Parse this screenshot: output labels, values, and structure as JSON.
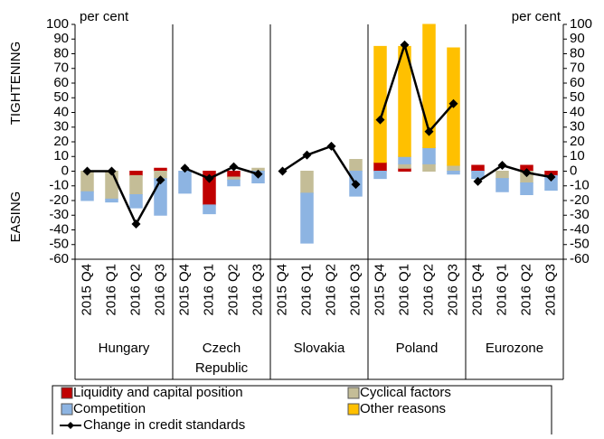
{
  "chart_data": {
    "type": "bar",
    "left_unit": "per cent",
    "right_unit": "per cent",
    "upper_label": "TIGHTENING",
    "lower_label": "EASING",
    "groups": [
      "Hungary",
      "Czech Republic",
      "Slovakia",
      "Poland",
      "Eurozone"
    ],
    "categories": [
      "2015 Q4",
      "2016 Q1",
      "2016 Q2",
      "2016 Q3",
      "2015 Q4",
      "2016 Q1",
      "2016 Q2",
      "2016 Q3",
      "2015 Q4",
      "2016 Q1",
      "2016 Q2",
      "2016 Q3",
      "2015 Q4",
      "2016 Q1",
      "2016 Q2",
      "2016 Q3",
      "2015 Q4",
      "2016 Q1",
      "2016 Q2",
      "2016 Q3"
    ],
    "series": [
      {
        "name": "Liquidity and capital position",
        "color": "#c00000",
        "values": [
          0,
          0,
          -3,
          2,
          0,
          -23,
          -4,
          0,
          0,
          0,
          0,
          0,
          6,
          2,
          0,
          0,
          4,
          0,
          4,
          -3
        ]
      },
      {
        "name": "Cyclical factors",
        "color": "#c4bd97",
        "values": [
          -14,
          -19,
          -13,
          -5,
          0,
          0,
          -2,
          2,
          0,
          -15,
          0,
          8,
          0,
          3,
          5,
          4,
          0,
          -5,
          -8,
          0
        ]
      },
      {
        "name": "Competition",
        "color": "#8db4e2",
        "values": [
          -6,
          -2,
          -9,
          -25,
          -15,
          -6,
          -4,
          -8,
          0,
          -34,
          0,
          -17,
          -5,
          5,
          11,
          -2,
          -5,
          -9,
          -8,
          -10
        ]
      },
      {
        "name": "Other reasons",
        "color": "#ffc000",
        "values": [
          0,
          0,
          0,
          0,
          0,
          0,
          0,
          0,
          0,
          0,
          0,
          0,
          79,
          75,
          84,
          80,
          0,
          0,
          0,
          0
        ]
      },
      {
        "name": "Change in credit standards",
        "type": "line",
        "color": "#000000",
        "values": [
          0,
          0,
          -36,
          -6,
          2,
          -5,
          3,
          -2,
          0,
          11,
          17,
          -9,
          35,
          86,
          27,
          46,
          -7,
          4,
          -1,
          -4
        ]
      }
    ],
    "ylim": [
      -60,
      100
    ],
    "yticks": [
      -60,
      -50,
      -40,
      -30,
      -20,
      -10,
      0,
      10,
      20,
      30,
      40,
      50,
      60,
      70,
      80,
      90,
      100
    ]
  }
}
